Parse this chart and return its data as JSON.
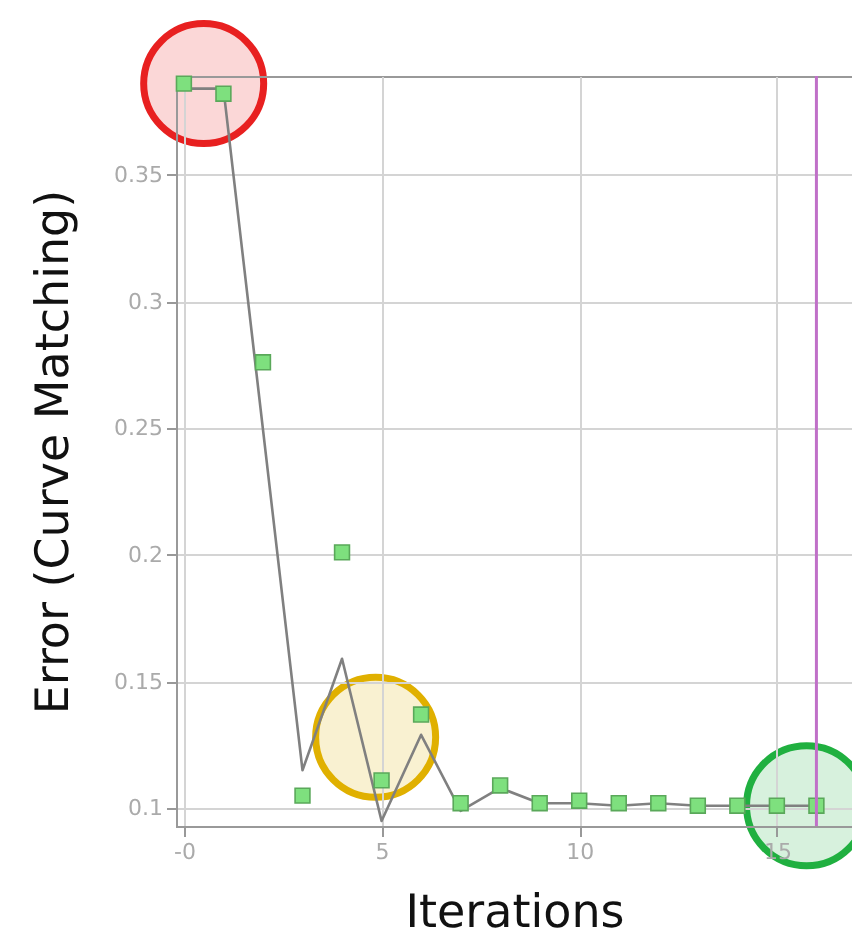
{
  "chart_data": {
    "type": "line",
    "xlabel": "Iterations",
    "ylabel": "Error (Curve Matching)",
    "xlim": [
      -0.2,
      16.9
    ],
    "ylim": [
      0.093,
      0.389
    ],
    "xticks": [
      {
        "value": 0,
        "label": "-0"
      },
      5,
      10,
      15
    ],
    "yticks": [
      0.1,
      0.15,
      0.2,
      0.25,
      0.3,
      0.35
    ],
    "grid": true,
    "series": [
      {
        "color": "#808080",
        "line_style": "solid",
        "marker": "none",
        "x": [
          0,
          1,
          3,
          4,
          5,
          6,
          7,
          8,
          9,
          10,
          11,
          12,
          13,
          14,
          15,
          16
        ],
        "values": [
          0.384,
          0.384,
          0.115,
          0.159,
          0.095,
          0.129,
          0.099,
          0.108,
          0.102,
          0.102,
          0.101,
          0.102,
          0.101,
          0.101,
          0.101,
          0.101
        ]
      },
      {
        "type": "scatter",
        "color": "#7ee07e",
        "marker": "square",
        "x": [
          0,
          1,
          2,
          3,
          4,
          5,
          6,
          7,
          8,
          9,
          10,
          11,
          12,
          13,
          14,
          15,
          16
        ],
        "values": [
          0.386,
          0.382,
          0.276,
          0.105,
          0.201,
          0.111,
          0.137,
          0.102,
          0.109,
          0.102,
          0.103,
          0.102,
          0.102,
          0.101,
          0.101,
          0.101,
          0.101
        ]
      }
    ],
    "ref_lines": [
      {
        "axis": "x",
        "value": 16,
        "color": "#c070c8"
      }
    ]
  }
}
